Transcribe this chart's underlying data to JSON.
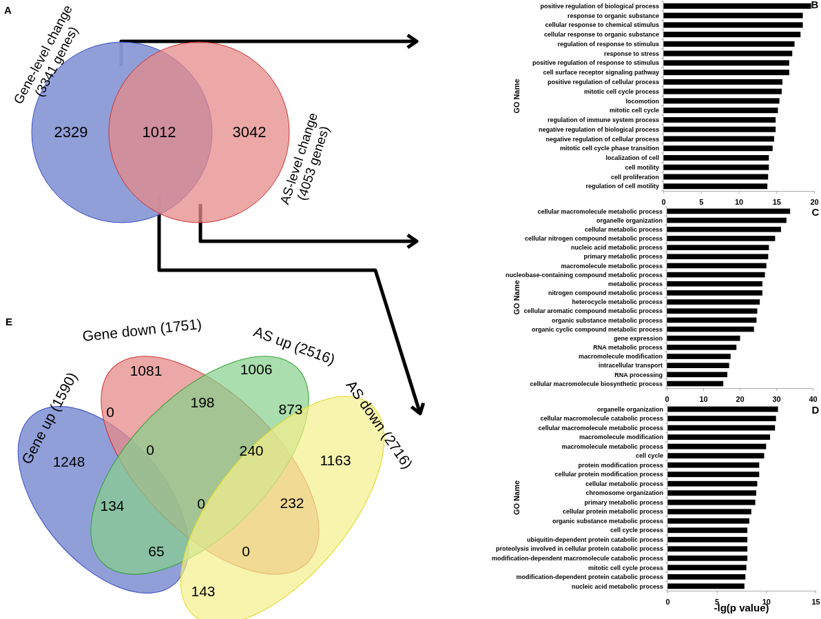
{
  "chart_data": [
    {
      "type": "other",
      "title": "A",
      "categories": [
        "Gene-level change\n(3341 genes)",
        "AS-level change\n(4053 genes)"
      ],
      "colors": [
        "#8a9ad6",
        "#e6898a"
      ],
      "annotations": [
        "2329",
        "1012",
        "3042"
      ]
    },
    {
      "type": "bar",
      "orientation": "horizontal",
      "title": "B",
      "ylabel": "GO Name",
      "color": "#000000",
      "xlim": [
        0,
        20
      ],
      "xticks": [
        0,
        5,
        10,
        15,
        20
      ],
      "grid": false,
      "categories": [
        "positive regulation of biological process",
        "response to organic substance",
        "cellular response to chemical stimulus",
        "cellular response to organic substance",
        "regulation of response to stimulus",
        "response to stress",
        "positive regulation of response to stimulus",
        "cell surface receptor signaling pathway",
        "positive regulation of cellular process",
        "mitotic cell cycle process",
        "locomotion",
        "mitotic cell cycle",
        "regulation of immune system process",
        "negative regulation of biological process",
        "negative regulation of cellular process",
        "mitotic cell cycle phase transition",
        "localization of cell",
        "cell motility",
        "cell proliferation",
        "regulation of cell motility"
      ],
      "values": [
        19.6,
        18.5,
        18.5,
        18.2,
        17.4,
        17.1,
        16.7,
        16.7,
        15.8,
        15.7,
        15.4,
        15.2,
        14.9,
        14.9,
        14.7,
        14.5,
        14.0,
        14.0,
        13.9,
        13.8
      ]
    },
    {
      "type": "bar",
      "orientation": "horizontal",
      "title": "C",
      "ylabel": "GO Name",
      "color": "#000000",
      "xlim": [
        0,
        40
      ],
      "xticks": [
        0,
        10,
        20,
        30,
        40
      ],
      "grid": false,
      "categories": [
        "cellular macromolecule metabolic process",
        "organelle organization",
        "cellular metabolic process",
        "cellular nitrogen compound metabolic process",
        "nucleic acid metabolic process",
        "primary metabolic process",
        "macromolecule metabolic process",
        "nucleobase-containing compound metabolic process",
        "metabolic process",
        "nitrogen compound metabolic process",
        "heterocycle metabolic process",
        "cellular aromatic compound metabolic process",
        "organic substance metabolic process",
        "organic cyclic compound metabolic process",
        "gene expression",
        "RNA metabolic process",
        "macromolecule modification",
        "intracellular transport",
        "RNA processing",
        "cellular macromolecule biosynthetic process"
      ],
      "values": [
        33.8,
        32.8,
        31.3,
        29.7,
        28.0,
        27.8,
        27.3,
        26.9,
        26.2,
        26.2,
        25.5,
        24.8,
        24.6,
        23.9,
        20.1,
        19.1,
        17.5,
        17.1,
        16.6,
        15.5
      ]
    },
    {
      "type": "bar",
      "orientation": "horizontal",
      "title": "D",
      "ylabel": "GO Name",
      "xlabel": "-lg(p value)",
      "color": "#000000",
      "xlim": [
        0,
        15
      ],
      "xticks": [
        0,
        5,
        10,
        15
      ],
      "grid": false,
      "categories": [
        "organelle organization",
        "cellular macromolecule catabolic process",
        "cellular macromolecule metabolic process",
        "macromolecule modification",
        "macromolecule metabolic process",
        "cell cycle",
        "protein modification process",
        "cellular protein modification process",
        "cellular metabolic process",
        "chromosome organization",
        "primary metabolic process",
        "cellular protein metabolic process",
        "organic substance metabolic process",
        "cell cycle process",
        "ubiquitin-dependent protein catabolic process",
        "proteolysis involved in cellular protein catabolic process",
        "modification-dependent macromolecule catabolic process",
        "mitotic cell cycle process",
        "modification-dependent protein catabolic process",
        "nucleic acid metabolic process"
      ],
      "values": [
        11.2,
        11.0,
        10.9,
        10.4,
        10.0,
        9.8,
        9.3,
        9.3,
        9.1,
        9.0,
        8.9,
        8.5,
        8.3,
        8.1,
        8.1,
        8.1,
        8.1,
        8.0,
        7.9,
        7.8
      ]
    },
    {
      "type": "other",
      "title": "E",
      "categories": [
        "Gene up (1590)",
        "Gene down (1751)",
        "AS up (2516)",
        "AS down (2716)"
      ],
      "colors": [
        "#8a9ad6",
        "#e6898a",
        "#86d08c",
        "#f4f08a"
      ],
      "annotations": [
        "1081",
        "1006",
        "0",
        "198",
        "873",
        "0",
        "240",
        "1248",
        "1163",
        "134",
        "0",
        "232",
        "65",
        "0",
        "143"
      ]
    }
  ]
}
